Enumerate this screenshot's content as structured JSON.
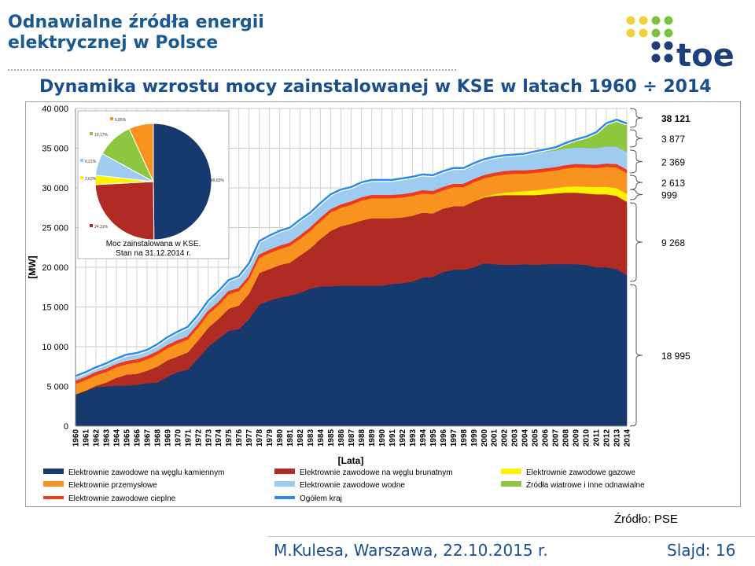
{
  "header": {
    "title_line1": "Odnawialne źródła energii",
    "title_line2": "elektrycznej w Polsce",
    "logo_text": "toe"
  },
  "slide": {
    "subtitle": "Dynamika wzrostu mocy zainstalowanej w KSE w latach 1960 ÷ 2014",
    "source": "Źródło: PSE",
    "author": "M.Kulesa, Warszawa, 22.10.2015 r.",
    "slide_number": "Slajd: 16"
  },
  "colors": {
    "brand_blue": "#1a5a93",
    "logo_navy": "#1f3f7a",
    "logo_yellow": "#f3d13a",
    "logo_green": "#7cc142"
  },
  "chart_data": {
    "type": "area",
    "stacked": true,
    "xlabel": "[Lata]",
    "ylabel": "[MW]",
    "ylim": [
      0,
      40000
    ],
    "yticks": [
      0,
      5000,
      10000,
      15000,
      20000,
      25000,
      30000,
      35000,
      40000
    ],
    "ytick_labels": [
      "0",
      "5 000",
      "10 000",
      "15 000",
      "20 000",
      "25 000",
      "30 000",
      "35 000",
      "40 000"
    ],
    "grid": true,
    "legend_position": "bottom",
    "x": [
      1960,
      1961,
      1962,
      1963,
      1964,
      1965,
      1966,
      1967,
      1968,
      1969,
      1970,
      1971,
      1972,
      1973,
      1974,
      1975,
      1976,
      1977,
      1978,
      1979,
      1980,
      1981,
      1982,
      1983,
      1984,
      1985,
      1986,
      1987,
      1988,
      1989,
      1990,
      1991,
      1992,
      1993,
      1994,
      1995,
      1996,
      1997,
      1998,
      1999,
      2000,
      2001,
      2002,
      2003,
      2004,
      2005,
      2006,
      2007,
      2008,
      2009,
      2010,
      2011,
      2012,
      2013,
      2014
    ],
    "series": [
      {
        "name": "Elektrownie zawodowe na węglu kamiennym",
        "color": "#173a6e",
        "values": [
          4000,
          4400,
          4900,
          5000,
          5100,
          5100,
          5200,
          5400,
          5500,
          6200,
          6800,
          7100,
          8500,
          10000,
          11000,
          12000,
          12200,
          13500,
          15300,
          15800,
          16200,
          16400,
          16800,
          17300,
          17600,
          17600,
          17700,
          17700,
          17700,
          17700,
          17700,
          17900,
          18000,
          18200,
          18700,
          18800,
          19400,
          19700,
          19700,
          20000,
          20500,
          20400,
          20300,
          20300,
          20400,
          20300,
          20400,
          20400,
          20400,
          20400,
          20300,
          20000,
          20000,
          19800,
          18995
        ]
      },
      {
        "name": "Elektrownie zawodowe na węglu brunatnym",
        "color": "#b12b25",
        "values": [
          0,
          100,
          200,
          500,
          1000,
          1400,
          1400,
          1600,
          2000,
          2100,
          2000,
          2200,
          2300,
          2400,
          2500,
          2800,
          3000,
          3200,
          4000,
          4000,
          4100,
          4200,
          4700,
          5100,
          6000,
          7000,
          7500,
          7800,
          8200,
          8500,
          8500,
          8300,
          8300,
          8300,
          8200,
          8000,
          8000,
          8000,
          8000,
          8300,
          8300,
          8600,
          8800,
          8800,
          8700,
          8800,
          8800,
          8900,
          9000,
          9000,
          9000,
          9200,
          9200,
          9200,
          9268
        ]
      },
      {
        "name": "Elektrownie zawodowe gazowe",
        "color": "#fff200",
        "values": [
          0,
          0,
          0,
          0,
          0,
          0,
          0,
          0,
          0,
          0,
          0,
          0,
          0,
          0,
          0,
          0,
          0,
          0,
          0,
          0,
          0,
          0,
          0,
          0,
          0,
          0,
          0,
          0,
          0,
          0,
          0,
          0,
          0,
          0,
          0,
          0,
          0,
          0,
          0,
          0,
          100,
          200,
          300,
          400,
          500,
          600,
          650,
          700,
          750,
          800,
          850,
          900,
          950,
          980,
          999
        ]
      },
      {
        "name": "Elektrownie przemysłowe",
        "color": "#f7931e",
        "values": [
          1300,
          1300,
          1300,
          1300,
          1300,
          1300,
          1400,
          1400,
          1500,
          1500,
          1600,
          1600,
          1600,
          1700,
          1700,
          1800,
          1800,
          1800,
          1900,
          2000,
          2000,
          2100,
          2100,
          2200,
          2200,
          2300,
          2300,
          2400,
          2500,
          2500,
          2500,
          2500,
          2500,
          2500,
          2400,
          2400,
          2300,
          2400,
          2400,
          2400,
          2300,
          2300,
          2300,
          2300,
          2200,
          2200,
          2200,
          2200,
          2300,
          2400,
          2400,
          2400,
          2500,
          2600,
          2613
        ]
      },
      {
        "name": "Elektrownie zawodowe cieplne",
        "color": "#ee3a1d",
        "values": [
          300,
          300,
          300,
          300,
          300,
          300,
          300,
          300,
          300,
          300,
          300,
          300,
          300,
          300,
          300,
          300,
          300,
          300,
          300,
          300,
          300,
          300,
          300,
          300,
          300,
          300,
          300,
          300,
          300,
          300,
          300,
          300,
          300,
          300,
          300,
          300,
          300,
          300,
          300,
          300,
          300,
          300,
          300,
          300,
          300,
          300,
          300,
          300,
          300,
          300,
          300,
          300,
          300,
          300,
          300
        ]
      },
      {
        "name": "Elektrownie zawodowe wodne",
        "color": "#9ecbf0",
        "values": [
          700,
          700,
          700,
          800,
          800,
          900,
          900,
          900,
          1000,
          1100,
          1200,
          1300,
          1300,
          1400,
          1500,
          1500,
          1600,
          1700,
          1800,
          1900,
          2000,
          2000,
          2000,
          2000,
          2000,
          2000,
          2000,
          2000,
          2000,
          2000,
          2000,
          2000,
          2100,
          2100,
          2100,
          2100,
          2100,
          2100,
          2100,
          2100,
          2100,
          2100,
          2100,
          2100,
          2100,
          2200,
          2200,
          2200,
          2200,
          2200,
          2200,
          2200,
          2300,
          2300,
          2369
        ]
      },
      {
        "name": "Źródła wiatrowe i inne odnawialne",
        "color": "#8dc63f",
        "values": [
          0,
          0,
          0,
          0,
          0,
          0,
          0,
          0,
          0,
          0,
          0,
          0,
          0,
          0,
          0,
          0,
          0,
          0,
          0,
          0,
          0,
          0,
          0,
          0,
          0,
          0,
          0,
          0,
          0,
          0,
          0,
          0,
          0,
          0,
          0,
          0,
          0,
          0,
          0,
          0,
          0,
          0,
          0,
          0,
          100,
          200,
          300,
          400,
          700,
          1000,
          1400,
          2000,
          2900,
          3400,
          3877
        ]
      }
    ],
    "total": {
      "name": "Ogółem kraj",
      "color": "#2e8ae6",
      "values": [
        6300,
        6800,
        7400,
        7900,
        8500,
        9000,
        9200,
        9600,
        10300,
        11200,
        11900,
        12500,
        14000,
        15800,
        17000,
        18400,
        18900,
        20500,
        23300,
        24000,
        24600,
        25000,
        26000,
        26900,
        28100,
        29200,
        29800,
        30100,
        30700,
        31000,
        31000,
        31000,
        31200,
        31400,
        31700,
        31600,
        32100,
        32500,
        32500,
        33100,
        33600,
        33900,
        34100,
        34200,
        34300,
        34600,
        34850,
        35100,
        35650,
        36100,
        36450,
        37000,
        38150,
        38580,
        38121
      ]
    },
    "right_labels": [
      "38 121",
      "3 877",
      "2 369",
      "2 613",
      "999",
      "9 268",
      "18 995"
    ],
    "pie": {
      "title_line1": "Moc zainstalowana w KSE.",
      "title_line2": "Stan na 31.12.2014 r.",
      "slices": [
        {
          "label": "49,83%",
          "value": 49.83,
          "color": "#173a6e"
        },
        {
          "label": "24,31%",
          "value": 24.31,
          "color": "#b12b25"
        },
        {
          "label": "2,62%",
          "value": 2.62,
          "color": "#fff200"
        },
        {
          "label": "6,21%",
          "value": 6.21,
          "color": "#9ecbf0"
        },
        {
          "label": "10,17%",
          "value": 10.17,
          "color": "#8dc63f"
        },
        {
          "label": "6,85%",
          "value": 6.85,
          "color": "#f7931e"
        }
      ]
    },
    "legend": [
      {
        "label": "Elektrownie zawodowe na węglu kamiennym",
        "color": "#173a6e",
        "kind": "box"
      },
      {
        "label": "Elektrownie zawodowe na węglu brunatnym",
        "color": "#b12b25",
        "kind": "box"
      },
      {
        "label": "Elektrownie zawodowe gazowe",
        "color": "#fff200",
        "kind": "box"
      },
      {
        "label": "Elektrownie przemysłowe",
        "color": "#f7931e",
        "kind": "box"
      },
      {
        "label": "Elektrownie zawodowe wodne",
        "color": "#9ecbf0",
        "kind": "box"
      },
      {
        "label": "Źródła wiatrowe i inne odnawialne",
        "color": "#8dc63f",
        "kind": "box"
      },
      {
        "label": "Elektrownie zawodowe cieplne",
        "color": "#ee3a1d",
        "kind": "line"
      },
      {
        "label": "Ogółem kraj",
        "color": "#2e8ae6",
        "kind": "line"
      }
    ]
  }
}
